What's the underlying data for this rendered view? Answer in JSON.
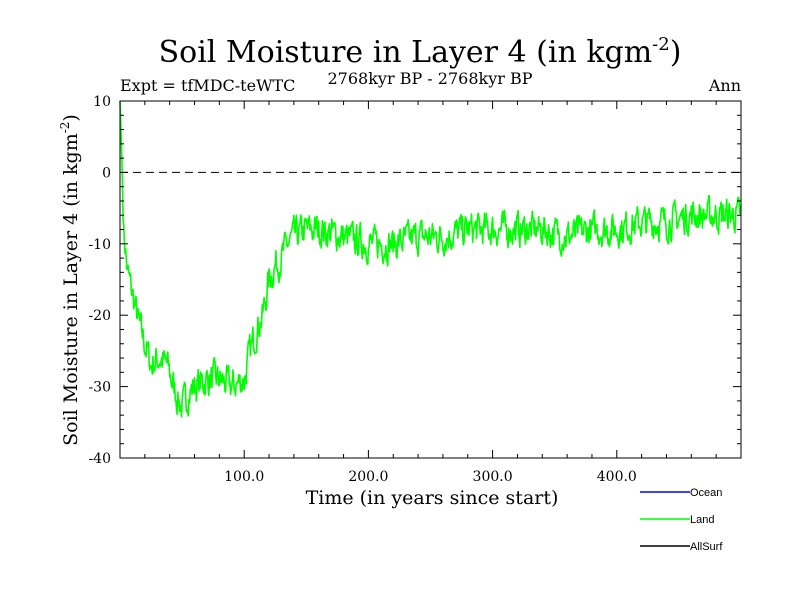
{
  "chart_data": {
    "type": "line",
    "title": "Soil Moisture in Layer 4 (in kgm",
    "title_superscript": "-2",
    "title_suffix": ")",
    "subtitle_left": "Expt = tfMDC-teWTC",
    "subtitle_center": "2768kyr BP - 2768kyr BP",
    "subtitle_right": "Ann",
    "xlabel": "Time (in years since start)",
    "ylabel": "Soil Moisture in Layer 4 (in kgm",
    "ylabel_superscript": "-2",
    "ylabel_suffix": ")",
    "xlim": [
      0,
      500
    ],
    "ylim": [
      -40,
      10
    ],
    "x_ticks": [
      100,
      200,
      300,
      400
    ],
    "x_tick_labels": [
      "100.0",
      "200.0",
      "300.0",
      "400.0"
    ],
    "y_ticks": [
      -40,
      -30,
      -20,
      -10,
      0,
      10
    ],
    "y_tick_labels": [
      "-40",
      "-30",
      "-20",
      "-10",
      "0",
      "10"
    ],
    "reference_line": 0,
    "series": [
      {
        "name": "Ocean",
        "color": "#0000ff",
        "values": []
      },
      {
        "name": "Land",
        "color": "#00ff00",
        "anchors": [
          [
            0,
            10
          ],
          [
            1,
            5
          ],
          [
            3,
            -8
          ],
          [
            6,
            -14
          ],
          [
            10,
            -17
          ],
          [
            15,
            -21
          ],
          [
            20,
            -24
          ],
          [
            25,
            -27
          ],
          [
            32,
            -26
          ],
          [
            38,
            -27
          ],
          [
            45,
            -31
          ],
          [
            50,
            -33
          ],
          [
            55,
            -31
          ],
          [
            60,
            -30
          ],
          [
            70,
            -29
          ],
          [
            80,
            -29
          ],
          [
            90,
            -30
          ],
          [
            100,
            -29
          ],
          [
            105,
            -25
          ],
          [
            110,
            -22
          ],
          [
            115,
            -20
          ],
          [
            120,
            -15
          ],
          [
            125,
            -13
          ],
          [
            130,
            -12
          ],
          [
            135,
            -10
          ],
          [
            140,
            -9
          ],
          [
            150,
            -8
          ],
          [
            160,
            -8
          ],
          [
            180,
            -9
          ],
          [
            200,
            -10
          ],
          [
            220,
            -10
          ],
          [
            240,
            -9
          ],
          [
            260,
            -9
          ],
          [
            280,
            -8
          ],
          [
            300,
            -8
          ],
          [
            320,
            -8
          ],
          [
            340,
            -8
          ],
          [
            360,
            -9
          ],
          [
            380,
            -8
          ],
          [
            400,
            -8
          ],
          [
            420,
            -7
          ],
          [
            440,
            -7
          ],
          [
            460,
            -6
          ],
          [
            480,
            -6
          ],
          [
            500,
            -6
          ]
        ],
        "noise": 2.2
      },
      {
        "name": "AllSurf",
        "color": "#000000",
        "values": []
      }
    ]
  }
}
